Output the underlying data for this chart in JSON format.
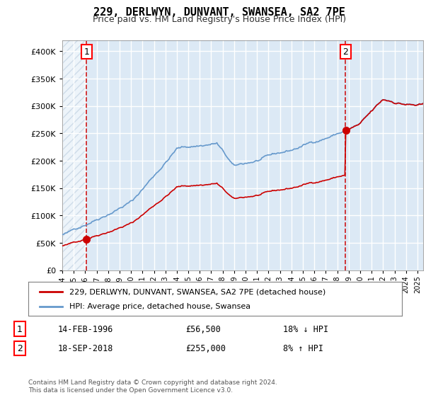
{
  "title": "229, DERLWYN, DUNVANT, SWANSEA, SA2 7PE",
  "subtitle": "Price paid vs. HM Land Registry's House Price Index (HPI)",
  "legend_line1": "229, DERLWYN, DUNVANT, SWANSEA, SA2 7PE (detached house)",
  "legend_line2": "HPI: Average price, detached house, Swansea",
  "annotation1": {
    "label": "1",
    "date_str": "14-FEB-1996",
    "price": 56500,
    "note": "18% ↓ HPI"
  },
  "annotation2": {
    "label": "2",
    "date_str": "18-SEP-2018",
    "price": 255000,
    "note": "8% ↑ HPI"
  },
  "footer": "Contains HM Land Registry data © Crown copyright and database right 2024.\nThis data is licensed under the Open Government Licence v3.0.",
  "hpi_color": "#6699cc",
  "price_color": "#cc0000",
  "dot_color": "#cc0000",
  "dashed_color": "#cc0000",
  "bg_color": "#dce9f5",
  "hatch_color": "#b0c4d8",
  "grid_color": "#ffffff",
  "ylim": [
    0,
    420000
  ],
  "xlim_start": 1994.0,
  "xlim_end": 2025.5,
  "purchase1_year": 1996.12,
  "purchase2_year": 2018.72
}
